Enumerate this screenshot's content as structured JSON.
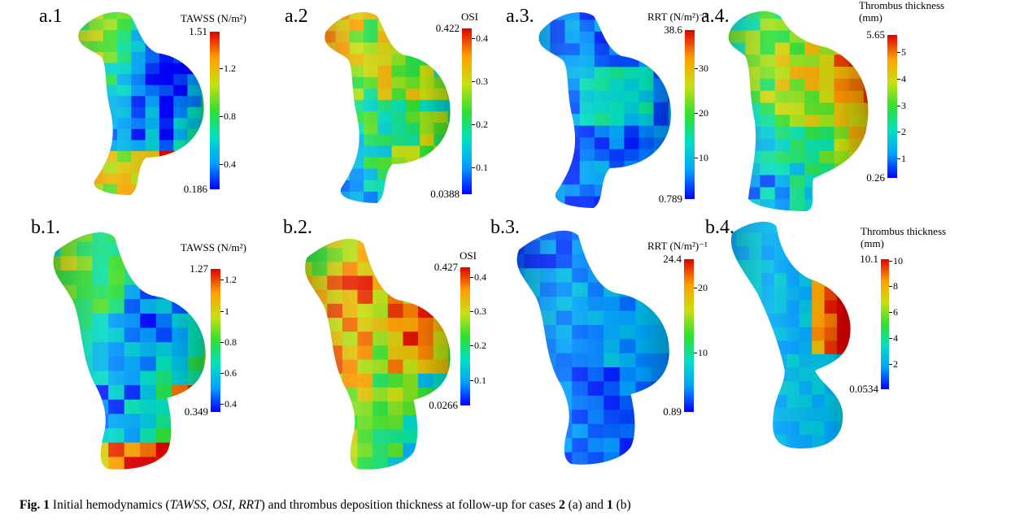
{
  "panels": [
    {
      "id": "a1",
      "label": "a.1",
      "title": "TAWSS (N/m²)",
      "title2": "",
      "max": "1.51",
      "min": "0.186",
      "ticks": [
        "1.2",
        "0.8",
        "0.4"
      ],
      "scale": [
        0.186,
        1.51
      ],
      "tickValues": [
        1.2,
        0.8,
        0.4
      ],
      "surface": "tawss_a",
      "shape": "a"
    },
    {
      "id": "a2",
      "label": "a.2",
      "title": "OSI",
      "title2": "",
      "max": "0.422",
      "min": "0.0388",
      "ticks": [
        "0.4",
        "0.3",
        "0.2",
        "0.1"
      ],
      "scale": [
        0.0388,
        0.422
      ],
      "tickValues": [
        0.4,
        0.3,
        0.2,
        0.1
      ],
      "surface": "osi_a",
      "shape": "a"
    },
    {
      "id": "a3",
      "label": "a.3.",
      "title": "RRT (N/m²)⁻¹",
      "title2": "",
      "max": "38.6",
      "min": "0.789",
      "ticks": [
        "30",
        "20",
        "10"
      ],
      "scale": [
        0.789,
        38.6
      ],
      "tickValues": [
        30,
        20,
        10
      ],
      "surface": "rrt_a",
      "shape": "a"
    },
    {
      "id": "a4",
      "label": "a.4.",
      "title": "Thrombus thickness",
      "title2": "(mm)",
      "max": "5.65",
      "min": "0.26",
      "ticks": [
        "5",
        "4",
        "3",
        "2",
        "1"
      ],
      "scale": [
        0.26,
        5.65
      ],
      "tickValues": [
        5,
        4,
        3,
        2,
        1
      ],
      "surface": "thr_a",
      "shape": "a4"
    },
    {
      "id": "b1",
      "label": "b.1.",
      "title": "TAWSS (N/m²)",
      "title2": "",
      "max": "1.27",
      "min": "0.349",
      "ticks": [
        "1.2",
        "1",
        "0.8",
        "0.6",
        "0.4"
      ],
      "scale": [
        0.349,
        1.27
      ],
      "tickValues": [
        1.2,
        1.0,
        0.8,
        0.6,
        0.4
      ],
      "surface": "tawss_b",
      "shape": "b"
    },
    {
      "id": "b2",
      "label": "b.2.",
      "title": "OSI",
      "title2": "",
      "max": "0.427",
      "min": "0.0266",
      "ticks": [
        "0.4",
        "0.3",
        "0.2",
        "0.1"
      ],
      "scale": [
        0.0266,
        0.427
      ],
      "tickValues": [
        0.4,
        0.3,
        0.2,
        0.1
      ],
      "surface": "osi_b",
      "shape": "b"
    },
    {
      "id": "b3",
      "label": "b.3.",
      "title": "RRT (N/m²)⁻¹",
      "title2": "",
      "max": "24.4",
      "min": "0.89",
      "ticks": [
        "20",
        "10"
      ],
      "scale": [
        0.89,
        24.4
      ],
      "tickValues": [
        20,
        10
      ],
      "surface": "rrt_b",
      "shape": "b"
    },
    {
      "id": "b4",
      "label": "b.4.",
      "title": "Thrombus thickness",
      "title2": "(mm)",
      "max": "10.1",
      "min": "0.0534",
      "ticks": [
        "10",
        "8",
        "6",
        "4",
        "2"
      ],
      "scale": [
        0.0534,
        10.1
      ],
      "tickValues": [
        10,
        8,
        6,
        4,
        2
      ],
      "surface": "thr_b",
      "shape": "b4"
    }
  ],
  "caption": {
    "fig": "Fig. 1",
    "t1": " Initial hemodynamics (",
    "metrics": "TAWSS, OSI, RRT",
    "t2": ") and thrombus deposition thickness at follow-up for cases ",
    "case_a": "2",
    "t3": " (a) and ",
    "case_b": "1",
    "t4": " (b)"
  },
  "colormap": [
    "#0000ff",
    "#00a0ff",
    "#00e0c0",
    "#30e030",
    "#c8e010",
    "#ffa000",
    "#e00000"
  ]
}
